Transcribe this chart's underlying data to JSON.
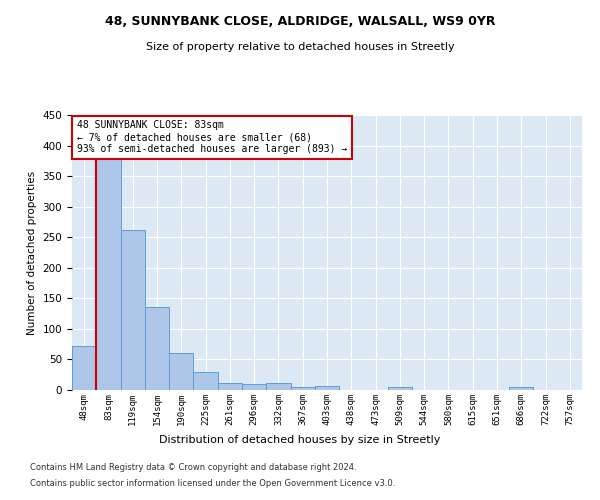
{
  "title": "48, SUNNYBANK CLOSE, ALDRIDGE, WALSALL, WS9 0YR",
  "subtitle": "Size of property relative to detached houses in Streetly",
  "xlabel": "Distribution of detached houses by size in Streetly",
  "ylabel": "Number of detached properties",
  "bin_labels": [
    "48sqm",
    "83sqm",
    "119sqm",
    "154sqm",
    "190sqm",
    "225sqm",
    "261sqm",
    "296sqm",
    "332sqm",
    "367sqm",
    "403sqm",
    "438sqm",
    "473sqm",
    "509sqm",
    "544sqm",
    "580sqm",
    "615sqm",
    "651sqm",
    "686sqm",
    "722sqm",
    "757sqm"
  ],
  "bar_heights": [
    72,
    380,
    262,
    136,
    60,
    30,
    11,
    10,
    11,
    5,
    6,
    0,
    0,
    5,
    0,
    0,
    0,
    0,
    5,
    0,
    0
  ],
  "bar_color": "#aec6e8",
  "bar_edge_color": "#5a9fd4",
  "property_line_x": 1,
  "property_line_color": "#cc0000",
  "annotation_line1": "48 SUNNYBANK CLOSE: 83sqm",
  "annotation_line2": "← 7% of detached houses are smaller (68)",
  "annotation_line3": "93% of semi-detached houses are larger (893) →",
  "annotation_box_color": "#ffffff",
  "annotation_box_edge": "#cc0000",
  "ylim": [
    0,
    450
  ],
  "yticks": [
    0,
    50,
    100,
    150,
    200,
    250,
    300,
    350,
    400,
    450
  ],
  "background_color": "#dde8f5",
  "footer_line1": "Contains HM Land Registry data © Crown copyright and database right 2024.",
  "footer_line2": "Contains public sector information licensed under the Open Government Licence v3.0."
}
